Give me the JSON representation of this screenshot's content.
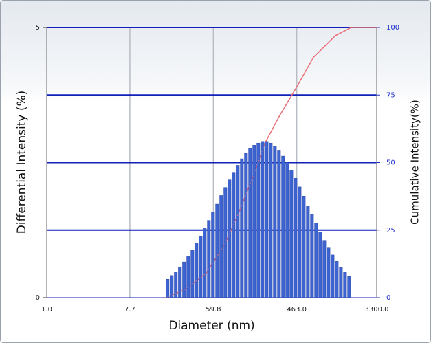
{
  "chart_data": {
    "type": "histogram",
    "xlabel": "Diameter (nm)",
    "ylabel": "Differential Intensity (%)",
    "y2label": "Cumulative Intensity(%)",
    "log_x": true,
    "xlim": [
      1,
      3300
    ],
    "xticks": [
      {
        "value": 1,
        "label": "1.0"
      },
      7.7,
      59.8,
      {
        "value": 463,
        "label": "463.0"
      },
      {
        "value": 3300,
        "label": "3300.0"
      }
    ],
    "ylim": [
      0,
      5
    ],
    "yticks": [
      0,
      5
    ],
    "y2lim": [
      0,
      100
    ],
    "y2ticks": [
      0,
      25,
      50,
      75,
      100
    ],
    "grid": true,
    "color": "#3d63d0",
    "bins": [
      18.5,
      20.5,
      22.7,
      25.1,
      27.8,
      30.8,
      34.1,
      37.7,
      41.7,
      46.2,
      51.1,
      56.5,
      62.6,
      69.2,
      76.6,
      84.8,
      93.8,
      103.8,
      114.9,
      127.1,
      140.7,
      155.7,
      172.3,
      190.6,
      211.0,
      233.5,
      258.3,
      285.9,
      316.3,
      350.1,
      387.4,
      428.7,
      474.4,
      525.0,
      581.0,
      642.9,
      711.4,
      787.3,
      871.2,
      964.1,
      1066.9,
      1180.6,
      1306.5,
      1445.8,
      1600.0,
      1770.5
    ],
    "counts": [
      0.34,
      0.41,
      0.48,
      0.57,
      0.66,
      0.77,
      0.88,
      1.01,
      1.14,
      1.28,
      1.43,
      1.58,
      1.73,
      1.89,
      2.04,
      2.18,
      2.32,
      2.45,
      2.57,
      2.67,
      2.76,
      2.82,
      2.86,
      2.89,
      2.89,
      2.86,
      2.8,
      2.73,
      2.62,
      2.5,
      2.36,
      2.21,
      2.05,
      1.88,
      1.7,
      1.54,
      1.37,
      1.21,
      1.06,
      0.92,
      0.79,
      0.67,
      0.56,
      0.47,
      0.39
    ],
    "line": {
      "axis": "y2",
      "color": "#e8707a",
      "x": [
        18.5,
        30,
        50,
        80,
        120,
        180,
        211,
        300,
        463,
        700,
        1200,
        1770,
        3300
      ],
      "values": [
        0,
        3,
        9,
        20,
        34,
        50,
        57,
        67,
        78,
        89,
        97,
        100,
        100
      ]
    }
  }
}
